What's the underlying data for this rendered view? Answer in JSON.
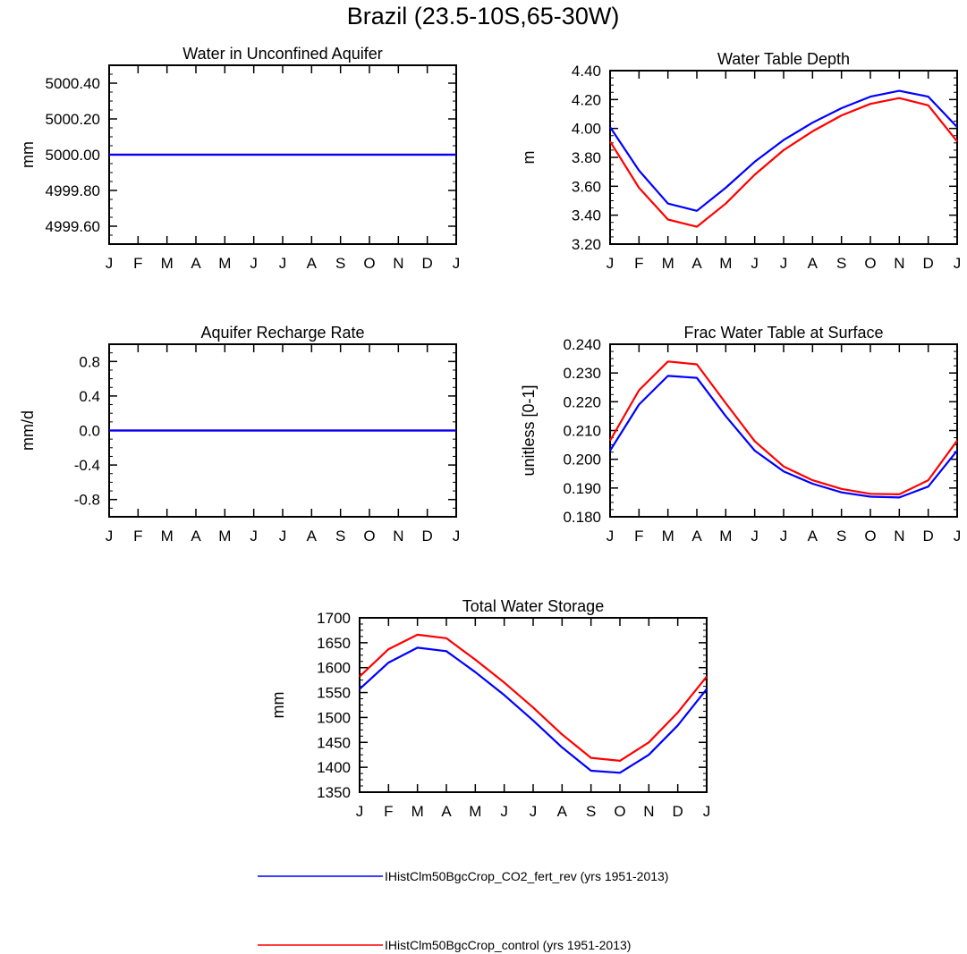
{
  "title": "Brazil (23.5-10S,65-30W)",
  "colors": {
    "series_a": "#0000ff",
    "series_b": "#ff0000"
  },
  "legend": {
    "items": [
      {
        "label": "IHistClm50BgcCrop_CO2_fert_rev (yrs 1951-2013)",
        "color": "#0000ff"
      },
      {
        "label": "IHistClm50BgcCrop_control (yrs 1951-2013)",
        "color": "#ff0000"
      }
    ]
  },
  "chart_data": [
    {
      "type": "line",
      "title": "Water in Unconfined Aquifer",
      "ylabel": "mm",
      "xlabel": "",
      "categories": [
        "J",
        "F",
        "M",
        "A",
        "M",
        "J",
        "J",
        "A",
        "S",
        "O",
        "N",
        "D",
        "J"
      ],
      "ylim": [
        4999.5,
        5000.5
      ],
      "yticks": [
        4999.6,
        4999.8,
        5000.0,
        5000.2,
        5000.4
      ],
      "ytick_labels": [
        "4999.60",
        "4999.80",
        "5000.00",
        "5000.20",
        "5000.40"
      ],
      "series": [
        {
          "color": "#ff0000",
          "values": [
            5000,
            5000,
            5000,
            5000,
            5000,
            5000,
            5000,
            5000,
            5000,
            5000,
            5000,
            5000,
            5000
          ]
        },
        {
          "color": "#0000ff",
          "values": [
            5000,
            5000,
            5000,
            5000,
            5000,
            5000,
            5000,
            5000,
            5000,
            5000,
            5000,
            5000,
            5000
          ]
        }
      ]
    },
    {
      "type": "line",
      "title": "Water Table Depth",
      "ylabel": "m",
      "xlabel": "",
      "categories": [
        "J",
        "F",
        "M",
        "A",
        "M",
        "J",
        "J",
        "A",
        "S",
        "O",
        "N",
        "D",
        "J"
      ],
      "ylim": [
        3.2,
        4.4
      ],
      "yticks": [
        3.2,
        3.4,
        3.6,
        3.8,
        4.0,
        4.2,
        4.4
      ],
      "ytick_labels": [
        "3.20",
        "3.40",
        "3.60",
        "3.80",
        "4.00",
        "4.20",
        "4.40"
      ],
      "series": [
        {
          "color": "#0000ff",
          "values": [
            4.01,
            3.71,
            3.48,
            3.43,
            3.59,
            3.77,
            3.92,
            4.04,
            4.14,
            4.22,
            4.26,
            4.22,
            4.01
          ]
        },
        {
          "color": "#ff0000",
          "values": [
            3.91,
            3.59,
            3.37,
            3.32,
            3.48,
            3.68,
            3.85,
            3.98,
            4.09,
            4.17,
            4.21,
            4.16,
            3.91
          ]
        }
      ]
    },
    {
      "type": "line",
      "title": "Aquifer Recharge Rate",
      "ylabel": "mm/d",
      "xlabel": "",
      "categories": [
        "J",
        "F",
        "M",
        "A",
        "M",
        "J",
        "J",
        "A",
        "S",
        "O",
        "N",
        "D",
        "J"
      ],
      "ylim": [
        -1.0,
        1.0
      ],
      "yticks": [
        -0.8,
        -0.4,
        0.0,
        0.4,
        0.8
      ],
      "ytick_labels": [
        "-0.8",
        "-0.4",
        "0.0",
        "0.4",
        "0.8"
      ],
      "series": [
        {
          "color": "#ff0000",
          "values": [
            0,
            0,
            0,
            0,
            0,
            0,
            0,
            0,
            0,
            0,
            0,
            0,
            0
          ]
        },
        {
          "color": "#0000ff",
          "values": [
            0,
            0,
            0,
            0,
            0,
            0,
            0,
            0,
            0,
            0,
            0,
            0,
            0
          ]
        }
      ]
    },
    {
      "type": "line",
      "title": "Frac Water Table at Surface",
      "ylabel": "unitless [0-1]",
      "xlabel": "",
      "categories": [
        "J",
        "F",
        "M",
        "A",
        "M",
        "J",
        "J",
        "A",
        "S",
        "O",
        "N",
        "D",
        "J"
      ],
      "ylim": [
        0.18,
        0.24
      ],
      "yticks": [
        0.18,
        0.19,
        0.2,
        0.21,
        0.22,
        0.23,
        0.24
      ],
      "ytick_labels": [
        "0.180",
        "0.190",
        "0.200",
        "0.210",
        "0.220",
        "0.230",
        "0.240"
      ],
      "series": [
        {
          "color": "#0000ff",
          "values": [
            0.203,
            0.219,
            0.229,
            0.2283,
            0.215,
            0.203,
            0.1958,
            0.1915,
            0.1885,
            0.187,
            0.1867,
            0.1905,
            0.203
          ]
        },
        {
          "color": "#ff0000",
          "values": [
            0.2065,
            0.224,
            0.234,
            0.233,
            0.2195,
            0.2063,
            0.1975,
            0.1927,
            0.1897,
            0.188,
            0.1878,
            0.1927,
            0.2065
          ]
        }
      ]
    },
    {
      "type": "line",
      "title": "Total Water Storage",
      "ylabel": "mm",
      "xlabel": "",
      "categories": [
        "J",
        "F",
        "M",
        "A",
        "M",
        "J",
        "J",
        "A",
        "S",
        "O",
        "N",
        "D",
        "J"
      ],
      "ylim": [
        1350,
        1700
      ],
      "yticks": [
        1350,
        1400,
        1450,
        1500,
        1550,
        1600,
        1650,
        1700
      ],
      "ytick_labels": [
        "1350",
        "1400",
        "1450",
        "1500",
        "1550",
        "1600",
        "1650",
        "1700"
      ],
      "series": [
        {
          "color": "#0000ff",
          "values": [
            1557,
            1610,
            1640,
            1633,
            1591,
            1545,
            1494,
            1440,
            1393,
            1389,
            1425,
            1484,
            1557
          ]
        },
        {
          "color": "#ff0000",
          "values": [
            1582,
            1637,
            1666,
            1659,
            1616,
            1570,
            1520,
            1466,
            1419,
            1413,
            1450,
            1510,
            1582
          ]
        }
      ]
    }
  ]
}
